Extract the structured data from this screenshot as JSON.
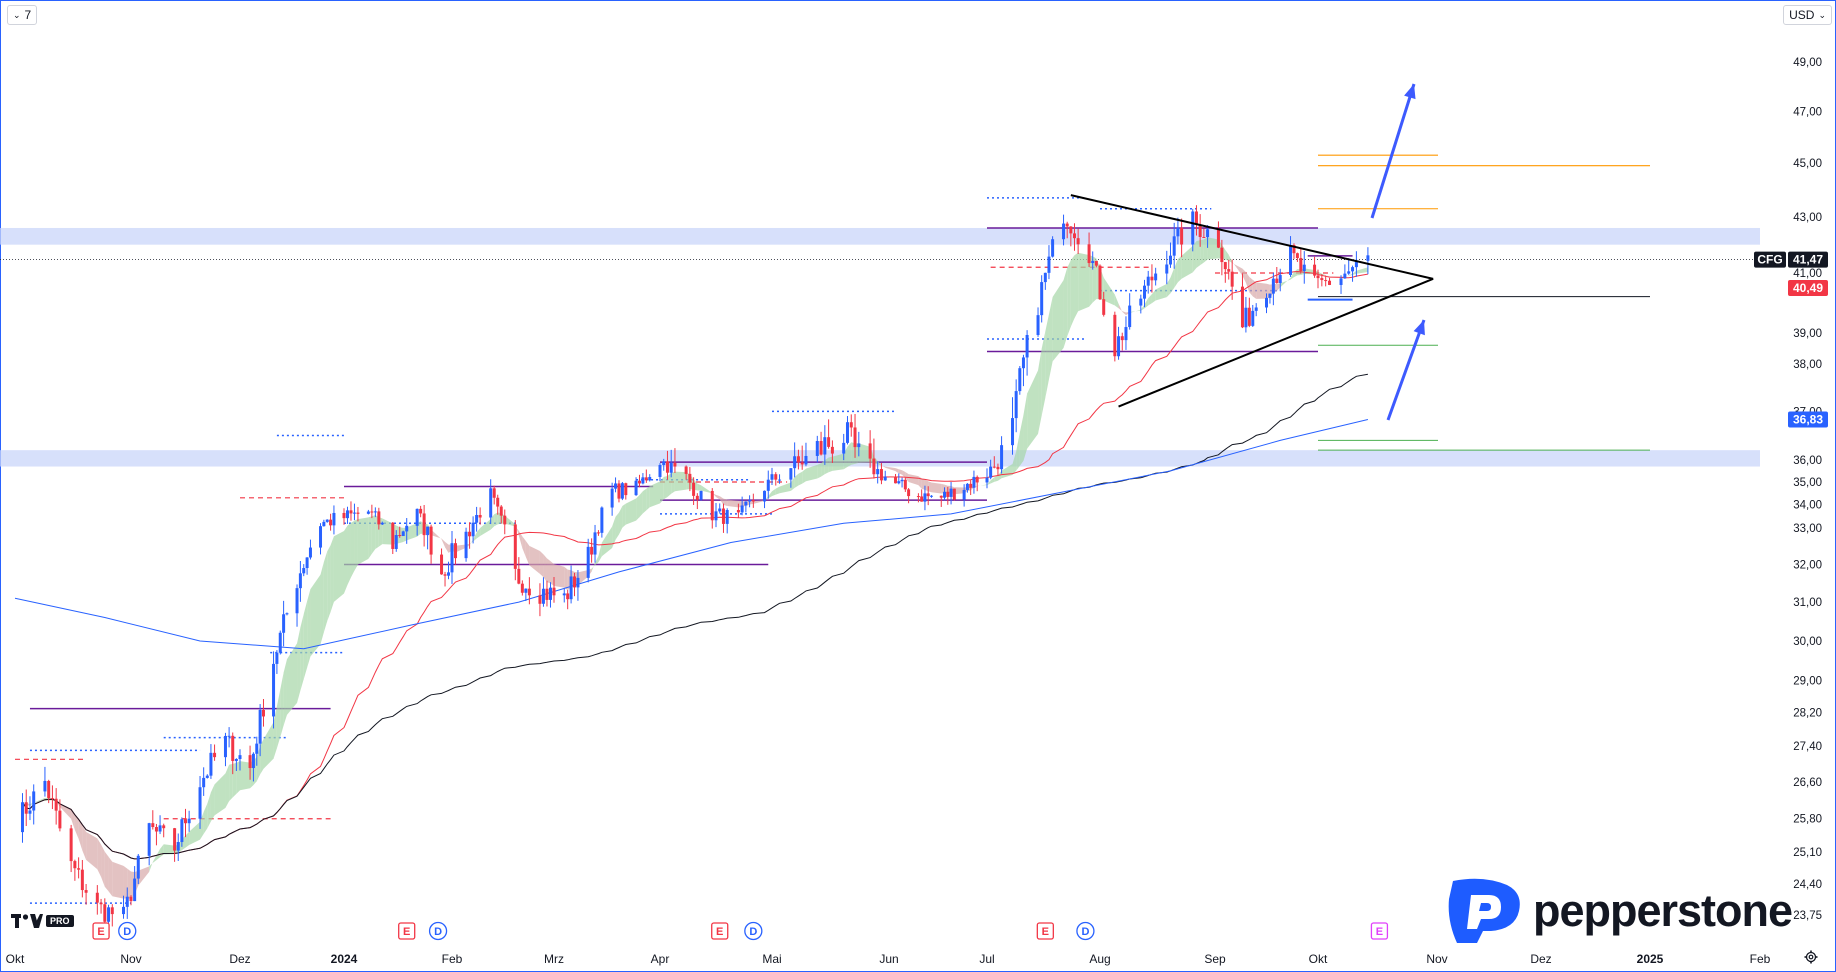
{
  "toolbar": {
    "interval": "7",
    "currency": "USD"
  },
  "brand": {
    "name": "pepperstone",
    "tv_badge": "PRO"
  },
  "colors": {
    "up": "#2962ff",
    "down": "#f23645",
    "zone": "#c9d6fa",
    "ma_fast": "#f23645",
    "ma_slow": "#131722",
    "ma_long": "#2962ff",
    "cloud_up": "#a5d6a7",
    "cloud_down": "#d7a8a8",
    "level": "#6a1b9a",
    "orange": "#ff9800",
    "green": "#4caf50",
    "arrow": "#3d5afe",
    "brand": "#1e5cff"
  },
  "chart_data": {
    "type": "candlestick",
    "symbol": "CFG",
    "currency": "USD",
    "x_labels": [
      "Okt",
      "Nov",
      "Dez",
      "2024",
      "Feb",
      "Mrz",
      "Apr",
      "Mai",
      "Jun",
      "Jul",
      "Aug",
      "Sep",
      "Okt",
      "Nov",
      "Dez",
      "2025",
      "Feb"
    ],
    "y_ticks": [
      "49,00",
      "47,00",
      "45,00",
      "43,00",
      "41,00",
      "39,00",
      "38,00",
      "37,00",
      "36,00",
      "35,00",
      "34,00",
      "33,00",
      "32,00",
      "31,00",
      "30,00",
      "29,00",
      "28,20",
      "27,40",
      "26,60",
      "25,80",
      "25,10",
      "24,40",
      "23,75"
    ],
    "y_scale": "log",
    "y_range": [
      23.4,
      51.5
    ],
    "x_range": [
      "2023-10-01",
      "2025-02-28"
    ],
    "price_tags": [
      {
        "label": "CFG",
        "value": "41,47",
        "kind": "last"
      },
      {
        "value": "40,49",
        "kind": "ma_fast"
      },
      {
        "value": "36,83",
        "kind": "ma_long"
      }
    ],
    "series": [
      {
        "name": "Close",
        "anchors": [
          [
            "2023-10-02",
            25.8
          ],
          [
            "2023-10-09",
            26.6
          ],
          [
            "2023-10-16",
            24.8
          ],
          [
            "2023-10-23",
            23.9
          ],
          [
            "2023-10-30",
            23.7
          ],
          [
            "2023-11-06",
            25.6
          ],
          [
            "2023-11-13",
            25.2
          ],
          [
            "2023-11-20",
            26.6
          ],
          [
            "2023-11-27",
            27.5
          ],
          [
            "2023-12-04",
            26.9
          ],
          [
            "2023-12-11",
            29.5
          ],
          [
            "2023-12-18",
            31.6
          ],
          [
            "2023-12-25",
            33.2
          ],
          [
            "2024-01-08",
            33.7
          ],
          [
            "2024-01-15",
            32.6
          ],
          [
            "2024-01-22",
            33.6
          ],
          [
            "2024-01-29",
            31.8
          ],
          [
            "2024-02-05",
            32.8
          ],
          [
            "2024-02-12",
            34.4
          ],
          [
            "2024-02-19",
            31.7
          ],
          [
            "2024-02-26",
            31.3
          ],
          [
            "2024-03-04",
            31.1
          ],
          [
            "2024-03-11",
            32.2
          ],
          [
            "2024-03-18",
            34.6
          ],
          [
            "2024-03-25",
            34.7
          ],
          [
            "2024-04-01",
            36.0
          ],
          [
            "2024-04-08",
            35.2
          ],
          [
            "2024-04-15",
            33.6
          ],
          [
            "2024-04-22",
            33.4
          ],
          [
            "2024-04-29",
            34.8
          ],
          [
            "2024-05-06",
            35.7
          ],
          [
            "2024-05-13",
            36.2
          ],
          [
            "2024-05-20",
            36.5
          ],
          [
            "2024-05-27",
            35.7
          ],
          [
            "2024-06-03",
            34.9
          ],
          [
            "2024-06-10",
            34.4
          ],
          [
            "2024-06-17",
            34.3
          ],
          [
            "2024-06-24",
            34.8
          ],
          [
            "2024-07-01",
            35.4
          ],
          [
            "2024-07-08",
            36.6
          ],
          [
            "2024-07-15",
            40.0
          ],
          [
            "2024-07-22",
            43.2
          ],
          [
            "2024-07-29",
            41.8
          ],
          [
            "2024-08-05",
            38.5
          ],
          [
            "2024-08-12",
            40.2
          ],
          [
            "2024-08-19",
            41.7
          ],
          [
            "2024-08-26",
            42.8
          ],
          [
            "2024-09-02",
            42.2
          ],
          [
            "2024-09-09",
            39.2
          ],
          [
            "2024-09-16",
            40.6
          ],
          [
            "2024-09-23",
            41.6
          ],
          [
            "2024-09-30",
            40.5
          ],
          [
            "2024-10-07",
            40.9
          ],
          [
            "2024-10-14",
            41.47
          ]
        ]
      },
      {
        "name": "MA fast (red)"
      },
      {
        "name": "MA slow (black)"
      },
      {
        "name": "MA long (blue)"
      }
    ],
    "resistance_zone": [
      42.0,
      42.6
    ],
    "support_zone": [
      35.7,
      36.2
    ],
    "triangle": {
      "apex": [
        "2024-10-31",
        40.8
      ],
      "top_start": [
        "2024-07-24",
        43.8
      ],
      "bottom_start": [
        "2024-08-06",
        37.1
      ]
    },
    "events": [
      {
        "date": "2023-10-24",
        "kind": "E"
      },
      {
        "date": "2023-10-31",
        "kind": "D"
      },
      {
        "date": "2024-01-19",
        "kind": "E"
      },
      {
        "date": "2024-01-28",
        "kind": "D"
      },
      {
        "date": "2024-04-17",
        "kind": "E"
      },
      {
        "date": "2024-04-26",
        "kind": "D"
      },
      {
        "date": "2024-07-17",
        "kind": "E"
      },
      {
        "date": "2024-07-28",
        "kind": "D"
      },
      {
        "date": "2024-10-17",
        "kind": "E",
        "future": true
      }
    ]
  }
}
